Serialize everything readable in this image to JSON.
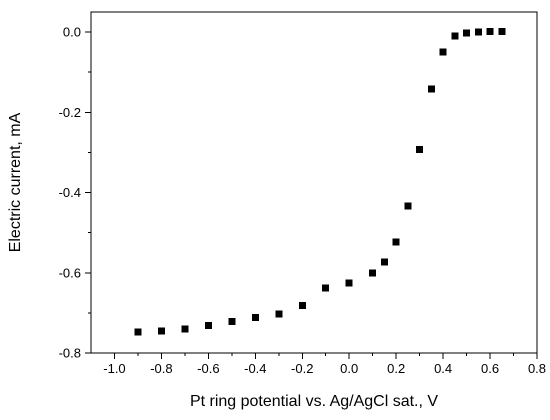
{
  "chart_data": {
    "type": "scatter",
    "title": "",
    "xlabel": "Pt ring potential vs. Ag/AgCl sat., V",
    "ylabel": "Electric current, mA",
    "xlim": [
      -1.1,
      0.8
    ],
    "ylim": [
      -0.8,
      0.05
    ],
    "x_ticks": [
      -1.0,
      -0.8,
      -0.6,
      -0.4,
      -0.2,
      0.0,
      0.2,
      0.4,
      0.6,
      0.8
    ],
    "x_tick_labels": [
      "-1.0",
      "-0.8",
      "-0.6",
      "-0.4",
      "-0.2",
      "0.0",
      "0.2",
      "0.4",
      "0.6",
      "0.8"
    ],
    "y_ticks": [
      -0.8,
      -0.6,
      -0.4,
      -0.2,
      0.0
    ],
    "y_tick_labels": [
      "-0.8",
      "-0.6",
      "-0.4",
      "-0.2",
      "0.0"
    ],
    "grid": false,
    "legend": "none",
    "marker": "square",
    "marker_color": "#000000",
    "series": [
      {
        "x": [
          -0.9,
          -0.8,
          -0.7,
          -0.6,
          -0.5,
          -0.4,
          -0.3,
          -0.2,
          -0.1,
          0.0,
          0.1,
          0.15,
          0.2,
          0.25,
          0.3,
          0.35,
          0.4,
          0.45,
          0.5,
          0.55,
          0.6,
          0.65
        ],
        "y": [
          -0.748,
          -0.745,
          -0.74,
          -0.732,
          -0.722,
          -0.711,
          -0.703,
          -0.682,
          -0.638,
          -0.625,
          -0.6,
          -0.573,
          -0.523,
          -0.434,
          -0.293,
          -0.142,
          -0.05,
          -0.01,
          -0.002,
          0.0,
          0.001,
          0.002
        ]
      }
    ]
  }
}
